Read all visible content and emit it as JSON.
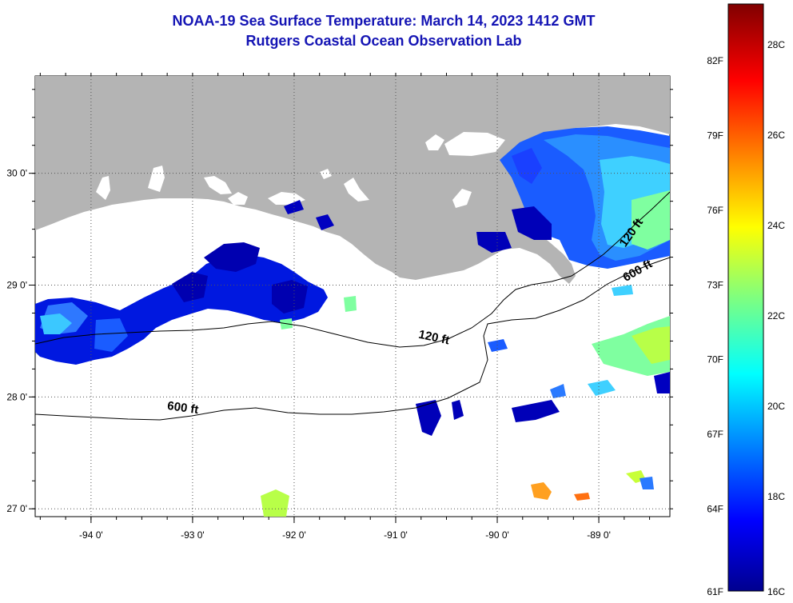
{
  "title": "NOAA-19 Sea Surface Temperature:  March 14, 2023 1412 GMT",
  "subtitle": "Rutgers Coastal Ocean Observation Lab",
  "map": {
    "lon_range": [
      -94.55,
      -88.3
    ],
    "lat_range": [
      26.93,
      30.87
    ],
    "lon_ticks": [
      {
        "value": -94,
        "label": "-94 0'"
      },
      {
        "value": -93,
        "label": "-93 0'"
      },
      {
        "value": -92,
        "label": "-92 0'"
      },
      {
        "value": -91,
        "label": "-91 0'"
      },
      {
        "value": -90,
        "label": "-90 0'"
      },
      {
        "value": -89,
        "label": "-89 0'"
      }
    ],
    "lat_ticks": [
      {
        "value": 30,
        "label": "30 0'"
      },
      {
        "value": 29,
        "label": "29 0'"
      },
      {
        "value": 28,
        "label": "28 0'"
      },
      {
        "value": 27,
        "label": "27 0'"
      }
    ],
    "land_color": "#b4b4b4",
    "cloud_color": "#ffffff",
    "grid": "dotted",
    "contours": [
      {
        "label": "120 ft",
        "depth_ft": 120
      },
      {
        "label": "600 ft",
        "depth_ft": 600
      }
    ],
    "contour_labels": [
      {
        "text": "120 ft",
        "lon": -90.63,
        "lat": 28.5
      },
      {
        "text": "600 ft",
        "lon": -93.1,
        "lat": 27.87
      },
      {
        "text": "120 ft",
        "lon": -88.65,
        "lat": 29.45
      },
      {
        "text": "600 ft",
        "lon": -88.6,
        "lat": 29.1
      }
    ]
  },
  "colorbar": {
    "colormap": "jet",
    "min_c": 16,
    "max_c": 29.5,
    "fahrenheit_labels": [
      "82F",
      "79F",
      "76F",
      "73F",
      "70F",
      "67F",
      "64F",
      "61F"
    ],
    "celsius_labels": [
      "28C",
      "26C",
      "24C",
      "22C",
      "20C",
      "18C",
      "16C"
    ]
  }
}
